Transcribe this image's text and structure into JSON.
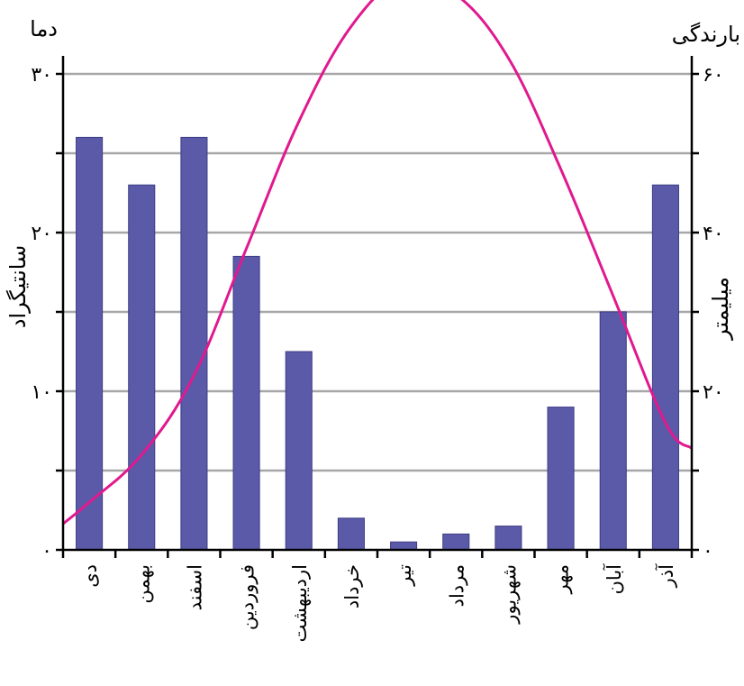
{
  "chart_data": {
    "type": "bar+line",
    "categories": [
      "دی",
      "بهمن",
      "اسفند",
      "فروردین",
      "اردیبهشت",
      "خرداد",
      "تیر",
      "مرداد",
      "شهریور",
      "مهر",
      "آبان",
      "آذر"
    ],
    "series": [
      {
        "name": "بارندگی",
        "type": "bar",
        "axis": "right",
        "values": [
          52,
          46,
          52,
          37,
          25,
          4,
          1,
          2,
          3,
          18,
          30,
          46
        ],
        "color": "#5b5aa8"
      },
      {
        "name": "دما",
        "type": "line",
        "axis": "left",
        "values": [
          3,
          6,
          11,
          19,
          27,
          33,
          36,
          35,
          31,
          24,
          16,
          8
        ],
        "color": "#e0198f"
      }
    ],
    "left_axis": {
      "title": "دما",
      "label": "سانتیگراد",
      "range": [
        0,
        30
      ],
      "tick_labels": [
        "۰",
        "۱۰",
        "۲۰",
        "۳۰"
      ]
    },
    "right_axis": {
      "title": "بارندگی",
      "label": "میلیمتر",
      "range": [
        0,
        60
      ],
      "tick_labels": [
        "۰",
        "۲۰",
        "۴۰",
        "۶۰"
      ]
    },
    "grid": true
  }
}
